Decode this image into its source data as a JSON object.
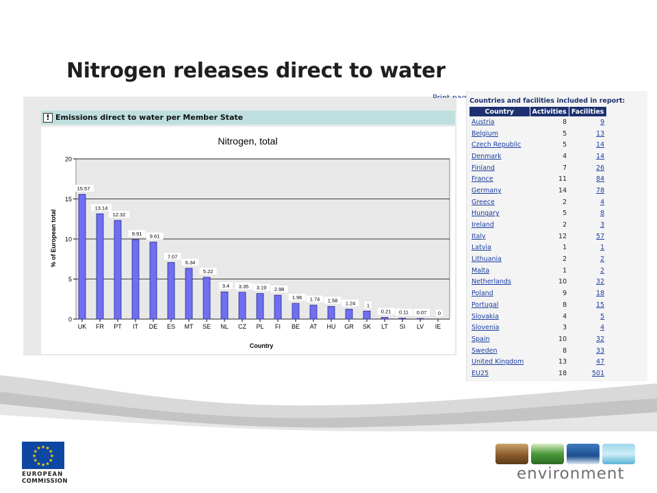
{
  "slide": {
    "title": "Nitrogen releases direct to water"
  },
  "chart_panel": {
    "print_link": "Print page",
    "header": "Emissions direct to water per Member State",
    "info_icon": "info-icon"
  },
  "chart_data": {
    "type": "bar",
    "title": "Nitrogen, total",
    "xlabel": "Country",
    "ylabel": "% of European total",
    "ylim": [
      0,
      20
    ],
    "yticks": [
      0,
      5,
      10,
      15,
      20
    ],
    "grid": true,
    "bar_color": "#6f6ff2",
    "categories": [
      "UK",
      "FR",
      "PT",
      "IT",
      "DE",
      "ES",
      "MT",
      "SE",
      "NL",
      "CZ",
      "PL",
      "FI",
      "BE",
      "AT",
      "HU",
      "GR",
      "SK",
      "LT",
      "SI",
      "LV",
      "IE"
    ],
    "values": [
      15.57,
      13.14,
      12.32,
      9.91,
      9.61,
      7.07,
      6.34,
      5.22,
      3.4,
      3.35,
      3.19,
      2.98,
      1.96,
      1.74,
      1.58,
      1.24,
      1,
      0.21,
      0.11,
      0.07,
      0
    ],
    "value_labels": [
      "15.57",
      "13.14",
      "12.32",
      "9.91",
      "9.61",
      "7.07",
      "6.34",
      "5.22",
      "3.4",
      "3.35",
      "3.19",
      "2.98",
      "1.96",
      "1.74",
      "1.58",
      "1.24",
      "1",
      "0.21",
      "0.11",
      "0.07",
      "0"
    ]
  },
  "facility_table": {
    "title": "Countries and facilities included in report:",
    "columns": [
      "Country",
      "Activities",
      "Facilities"
    ],
    "rows": [
      {
        "country": "Austria",
        "activities": "8",
        "facilities": "9"
      },
      {
        "country": "Belgium",
        "activities": "5",
        "facilities": "13"
      },
      {
        "country": "Czech Republic",
        "activities": "5",
        "facilities": "14"
      },
      {
        "country": "Denmark",
        "activities": "4",
        "facilities": "14"
      },
      {
        "country": "Finland",
        "activities": "7",
        "facilities": "26"
      },
      {
        "country": "France",
        "activities": "11",
        "facilities": "84"
      },
      {
        "country": "Germany",
        "activities": "14",
        "facilities": "78"
      },
      {
        "country": "Greece",
        "activities": "2",
        "facilities": "4"
      },
      {
        "country": "Hungary",
        "activities": "5",
        "facilities": "8"
      },
      {
        "country": "Ireland",
        "activities": "2",
        "facilities": "3"
      },
      {
        "country": "Italy",
        "activities": "12",
        "facilities": "57"
      },
      {
        "country": "Latvia",
        "activities": "1",
        "facilities": "1"
      },
      {
        "country": "Lithuania",
        "activities": "2",
        "facilities": "2"
      },
      {
        "country": "Malta",
        "activities": "1",
        "facilities": "2"
      },
      {
        "country": "Netherlands",
        "activities": "10",
        "facilities": "32"
      },
      {
        "country": "Poland",
        "activities": "9",
        "facilities": "18"
      },
      {
        "country": "Portugal",
        "activities": "8",
        "facilities": "15"
      },
      {
        "country": "Slovakia",
        "activities": "4",
        "facilities": "5"
      },
      {
        "country": "Slovenia",
        "activities": "3",
        "facilities": "4"
      },
      {
        "country": "Spain",
        "activities": "10",
        "facilities": "32"
      },
      {
        "country": "Sweden",
        "activities": "8",
        "facilities": "33"
      },
      {
        "country": "United Kingdom",
        "activities": "13",
        "facilities": "47"
      },
      {
        "country": "EU25",
        "activities": "18",
        "facilities": "501"
      }
    ]
  },
  "footer": {
    "eu_logo_line1": "EUROPEAN",
    "eu_logo_line2": "COMMISSION",
    "env_logo_text": "environment"
  },
  "colors": {
    "table_header": "#1d3170",
    "link": "#1a3d9f",
    "panel_header": "#bfdfdf",
    "bar": "#6f6ff2"
  }
}
